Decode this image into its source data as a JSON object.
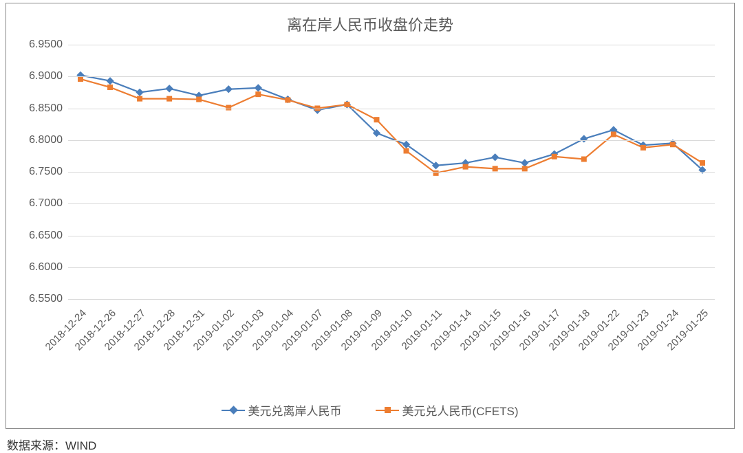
{
  "chart": {
    "type": "line",
    "title": "离在岸人民币收盘价走势",
    "title_fontsize": 22,
    "title_color": "#595959",
    "background_color": "#ffffff",
    "border_color": "#888888",
    "grid_color": "#d9d9d9",
    "axis_label_color": "#595959",
    "axis_label_fontsize": 16,
    "ylim": [
      6.55,
      6.95
    ],
    "ytick_step": 0.05,
    "ytick_format": "4dp",
    "yticks": [
      "6.5500",
      "6.6000",
      "6.6500",
      "6.7000",
      "6.7500",
      "6.8000",
      "6.8500",
      "6.9000",
      "6.9500"
    ],
    "categories": [
      "2018-12-24",
      "2018-12-26",
      "2018-12-27",
      "2018-12-28",
      "2018-12-31",
      "2019-01-02",
      "2019-01-03",
      "2019-01-04",
      "2019-01-07",
      "2019-01-08",
      "2019-01-09",
      "2019-01-10",
      "2019-01-11",
      "2019-01-14",
      "2019-01-15",
      "2019-01-16",
      "2019-01-17",
      "2019-01-18",
      "2019-01-22",
      "2019-01-23",
      "2019-01-24",
      "2019-01-25"
    ],
    "x_label_rotation_deg": -45,
    "series": [
      {
        "name": "美元兑离岸人民币",
        "color": "#4a7ebb",
        "marker": "diamond",
        "marker_size": 8,
        "line_width": 2.2,
        "values": [
          6.902,
          6.893,
          6.875,
          6.881,
          6.87,
          6.88,
          6.882,
          6.864,
          6.847,
          6.856,
          6.811,
          6.793,
          6.76,
          6.764,
          6.773,
          6.764,
          6.778,
          6.802,
          6.816,
          6.792,
          6.795,
          6.753
        ]
      },
      {
        "name": "美元兑人民币(CFETS)",
        "color": "#ed7d31",
        "marker": "square",
        "marker_size": 8,
        "line_width": 2.2,
        "values": [
          6.896,
          6.883,
          6.865,
          6.865,
          6.864,
          6.851,
          6.872,
          6.863,
          6.85,
          6.856,
          6.832,
          6.783,
          6.748,
          6.758,
          6.755,
          6.755,
          6.774,
          6.77,
          6.809,
          6.788,
          6.793,
          6.764
        ]
      }
    ],
    "legend": {
      "position": "bottom",
      "fontsize": 17,
      "color": "#595959"
    }
  },
  "source_note": "数据来源：WIND"
}
